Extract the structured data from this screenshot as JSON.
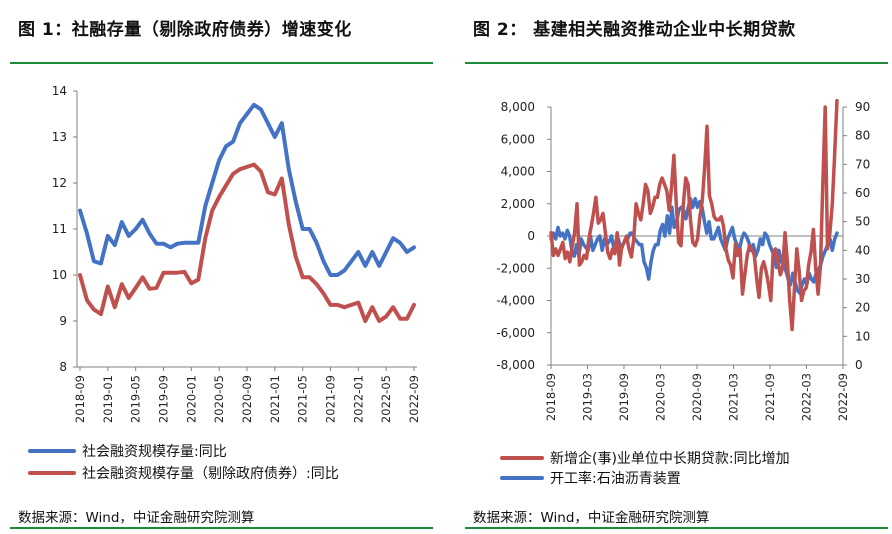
{
  "colors": {
    "blue": "#4472c4",
    "red": "#c0504d",
    "green": "#1f8a3b"
  },
  "chart_data": [
    {
      "type": "line",
      "title": "图 1：社融存量（剔除政府债券）增速变化",
      "source": "数据来源：Wind，中证金融研究院测算",
      "ylim": [
        8,
        14
      ],
      "yticks": [
        "8",
        "9",
        "10",
        "11",
        "12",
        "13",
        "14"
      ],
      "xtick_labels": [
        "2018-09",
        "2019-01",
        "2019-05",
        "2019-09",
        "2020-01",
        "2020-05",
        "2020-09",
        "2021-01",
        "2021-05",
        "2021-09",
        "2022-01",
        "2022-05",
        "2022-09"
      ],
      "series": [
        {
          "name": "社会融资规模存量:同比",
          "color": "blue",
          "values": [
            11.4,
            10.9,
            10.3,
            10.25,
            10.85,
            10.65,
            11.15,
            10.85,
            11.0,
            11.2,
            10.9,
            10.68,
            10.68,
            10.6,
            10.68,
            10.7,
            10.7,
            10.7,
            11.5,
            12.0,
            12.5,
            12.8,
            12.9,
            13.3,
            13.5,
            13.7,
            13.6,
            13.3,
            13.0,
            13.3,
            12.3,
            11.6,
            11.0,
            11.0,
            10.7,
            10.3,
            10.0,
            10.0,
            10.1,
            10.3,
            10.5,
            10.2,
            10.5,
            10.2,
            10.5,
            10.8,
            10.7,
            10.5,
            10.6
          ]
        },
        {
          "name": "社会融资规模存量（剔除政府债券）:同比",
          "color": "red",
          "values": [
            10.0,
            9.45,
            9.25,
            9.15,
            9.75,
            9.3,
            9.8,
            9.5,
            9.72,
            9.95,
            9.7,
            9.72,
            10.05,
            10.05,
            10.05,
            10.07,
            9.82,
            9.9,
            10.8,
            11.4,
            11.7,
            11.95,
            12.2,
            12.3,
            12.35,
            12.4,
            12.25,
            11.8,
            11.75,
            12.1,
            11.1,
            10.4,
            9.95,
            9.95,
            9.8,
            9.6,
            9.35,
            9.35,
            9.3,
            9.35,
            9.4,
            9.0,
            9.3,
            9.0,
            9.1,
            9.3,
            9.05,
            9.05,
            9.35
          ]
        }
      ]
    },
    {
      "type": "line",
      "title": "图 2：   基建相关融资推动企业中长期贷款",
      "source": "数据来源：Wind，中证金融研究院测算",
      "ylim_left": [
        -8000,
        8000
      ],
      "yticks_left": [
        "8,000",
        "6,000",
        "4,000",
        "2,000",
        "0",
        "-2,000",
        "-4,000",
        "-6,000",
        "-8,000"
      ],
      "ylim_right": [
        0,
        90
      ],
      "yticks_right": [
        "90",
        "80",
        "70",
        "60",
        "50",
        "40",
        "30",
        "20",
        "10",
        "0"
      ],
      "xtick_labels": [
        "2018-09",
        "2019-03",
        "2019-09",
        "2020-03",
        "2020-09",
        "2021-03",
        "2021-09",
        "2022-03",
        "2022-09"
      ],
      "series": [
        {
          "name": "新增企(事)业单位中长期贷款:同比增加",
          "color": "red",
          "axis": "left",
          "values": [
            200,
            -1200,
            -800,
            -1200,
            -800,
            -400,
            -1400,
            -1000,
            -1600,
            -600,
            200,
            2000,
            -1800,
            -1600,
            -1200,
            -1400,
            -200,
            600,
            1400,
            2400,
            800,
            1000,
            1400,
            200,
            -1000,
            -1400,
            -800,
            -1100,
            200,
            -1800,
            -600,
            -400,
            0,
            -800,
            -1300,
            -200,
            2000,
            1400,
            1000,
            2000,
            3200,
            2800,
            1400,
            1800,
            2400,
            2400,
            3200,
            3600,
            3200,
            2800,
            1600,
            3000,
            5000,
            2000,
            -400,
            -600,
            2000,
            3600,
            3200,
            1000,
            -400,
            -600,
            -200,
            1200,
            2200,
            4200,
            6800,
            2500,
            2000,
            1200,
            1000,
            1000,
            1200,
            600,
            -800,
            -1500,
            -1800,
            -2600,
            -500,
            -1200,
            -800,
            -3600,
            -2400,
            -1200,
            -600,
            -800,
            -1200,
            -2600,
            -3800,
            -2000,
            -1600,
            -2200,
            -3000,
            -4000,
            -1000,
            -800,
            -1500,
            -2400,
            -2000,
            200,
            -1600,
            -4000,
            -5800,
            -3200,
            -800,
            -2200,
            -4000,
            -3400,
            -3200,
            -1800,
            -1000,
            400,
            -2000,
            -3600,
            -1800,
            3200,
            8000,
            -800,
            200,
            2000,
            5000,
            8400
          ]
        },
        {
          "name": "开工率:石油沥青装置",
          "color": "blue",
          "axis": "right",
          "values": [
            44,
            46,
            44,
            48,
            45,
            46,
            44,
            47,
            45,
            40,
            38,
            42,
            38,
            44,
            42,
            41,
            40,
            45,
            40,
            42,
            44,
            45,
            40,
            44,
            42,
            43,
            45,
            41,
            43,
            44,
            40,
            42,
            44,
            44,
            46,
            46,
            44,
            43,
            42,
            42,
            36,
            34,
            30,
            36,
            40,
            42,
            42,
            47,
            49,
            45,
            52,
            46,
            55,
            48,
            50,
            54,
            55,
            54,
            51,
            55,
            58,
            55,
            58,
            55,
            57,
            55,
            50,
            46,
            50,
            44,
            44,
            46,
            48,
            44,
            42,
            40,
            44,
            46,
            48,
            44,
            42,
            40,
            44,
            46,
            45,
            43,
            40,
            42,
            38,
            40,
            44,
            42,
            46,
            45,
            42,
            40,
            38,
            34,
            40,
            36,
            38,
            33,
            30,
            28,
            32,
            29,
            26,
            25,
            28,
            30,
            28,
            32,
            30,
            29,
            32,
            33,
            35,
            38,
            40,
            42,
            44,
            40,
            44,
            46
          ]
        }
      ]
    }
  ]
}
